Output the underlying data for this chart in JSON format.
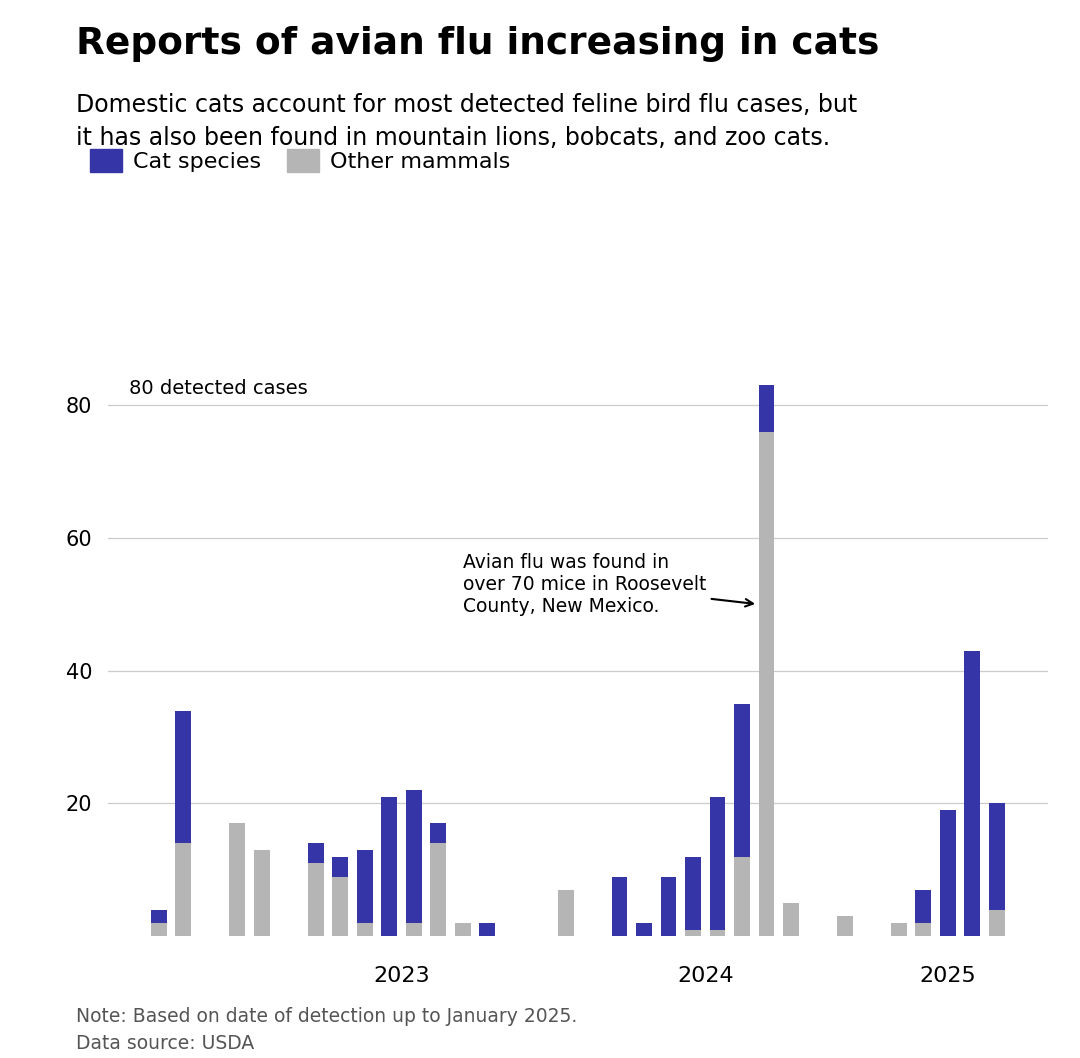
{
  "title": "Reports of avian flu increasing in cats",
  "subtitle": "Domestic cats account for most detected feline bird flu cases, but\nit has also been found in mountain lions, bobcats, and zoo cats.",
  "legend_cat": "Cat species",
  "legend_other": "Other mammals",
  "note": "Note: Based on date of detection up to January 2025.\nData source: USDA",
  "cat_color": "#3535a8",
  "other_color": "#b5b5b5",
  "annotation_text": "Avian flu was found in\nover 70 mice in Roosevelt\nCounty, New Mexico.",
  "bar_width": 0.65,
  "ylim": [
    0,
    90
  ],
  "yticks": [
    20,
    40,
    60,
    80
  ],
  "ylabel_text": "80 detected cases",
  "groups": [
    {
      "label": "",
      "bars": [
        {
          "cat": 2,
          "other": 2
        },
        {
          "cat": 20,
          "other": 14
        }
      ]
    },
    {
      "label": "",
      "bars": [
        {
          "cat": 0,
          "other": 17
        },
        {
          "cat": 0,
          "other": 13
        }
      ]
    },
    {
      "label": "2023",
      "bars": [
        {
          "cat": 3,
          "other": 11
        },
        {
          "cat": 3,
          "other": 9
        },
        {
          "cat": 11,
          "other": 2
        },
        {
          "cat": 21,
          "other": 0
        },
        {
          "cat": 20,
          "other": 2
        },
        {
          "cat": 3,
          "other": 14
        },
        {
          "cat": 0,
          "other": 2
        },
        {
          "cat": 2,
          "other": 0
        }
      ]
    },
    {
      "label": "",
      "bars": [
        {
          "cat": 0,
          "other": 0
        },
        {
          "cat": 0,
          "other": 7
        }
      ]
    },
    {
      "label": "2024",
      "bars": [
        {
          "cat": 9,
          "other": 0
        },
        {
          "cat": 2,
          "other": 0
        },
        {
          "cat": 9,
          "other": 0
        },
        {
          "cat": 11,
          "other": 1
        },
        {
          "cat": 20,
          "other": 1
        },
        {
          "cat": 23,
          "other": 12
        },
        {
          "cat": 7,
          "other": 76
        },
        {
          "cat": 0,
          "other": 5
        }
      ]
    },
    {
      "label": "",
      "bars": [
        {
          "cat": 0,
          "other": 3
        }
      ]
    },
    {
      "label": "2025",
      "bars": [
        {
          "cat": 0,
          "other": 2
        },
        {
          "cat": 5,
          "other": 2
        },
        {
          "cat": 19,
          "other": 0
        },
        {
          "cat": 43,
          "other": 0
        },
        {
          "cat": 16,
          "other": 4
        }
      ]
    }
  ]
}
